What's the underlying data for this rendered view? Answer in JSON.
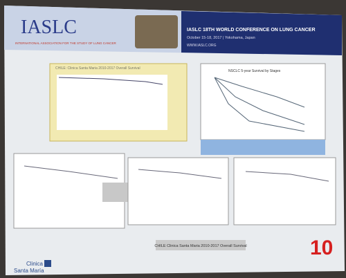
{
  "header": {
    "logo": "IASLC",
    "association": "INTERNATIONAL ASSOCIATION FOR THE STUDY OF LUNG CANCER",
    "conference": "IASLC 18TH WORLD CONFERENCE ON LUNG CANCER",
    "dates": "October 15-18, 2017 | Yokohama, Japan",
    "website": "WWW.IASLC.ORG"
  },
  "panels": {
    "top_left_caption": "CHILE: Clinica Santa Maria 2010-2017 Overall Survival",
    "top_right_title": "NSCLC 5-year Survival by Stages"
  },
  "footer": {
    "caption": "CHILE Clinica Santa Maria 2010-2017 Overall Survival",
    "slide_number": "10",
    "logo_line1": "Clinica",
    "logo_line2": "Santa María"
  }
}
